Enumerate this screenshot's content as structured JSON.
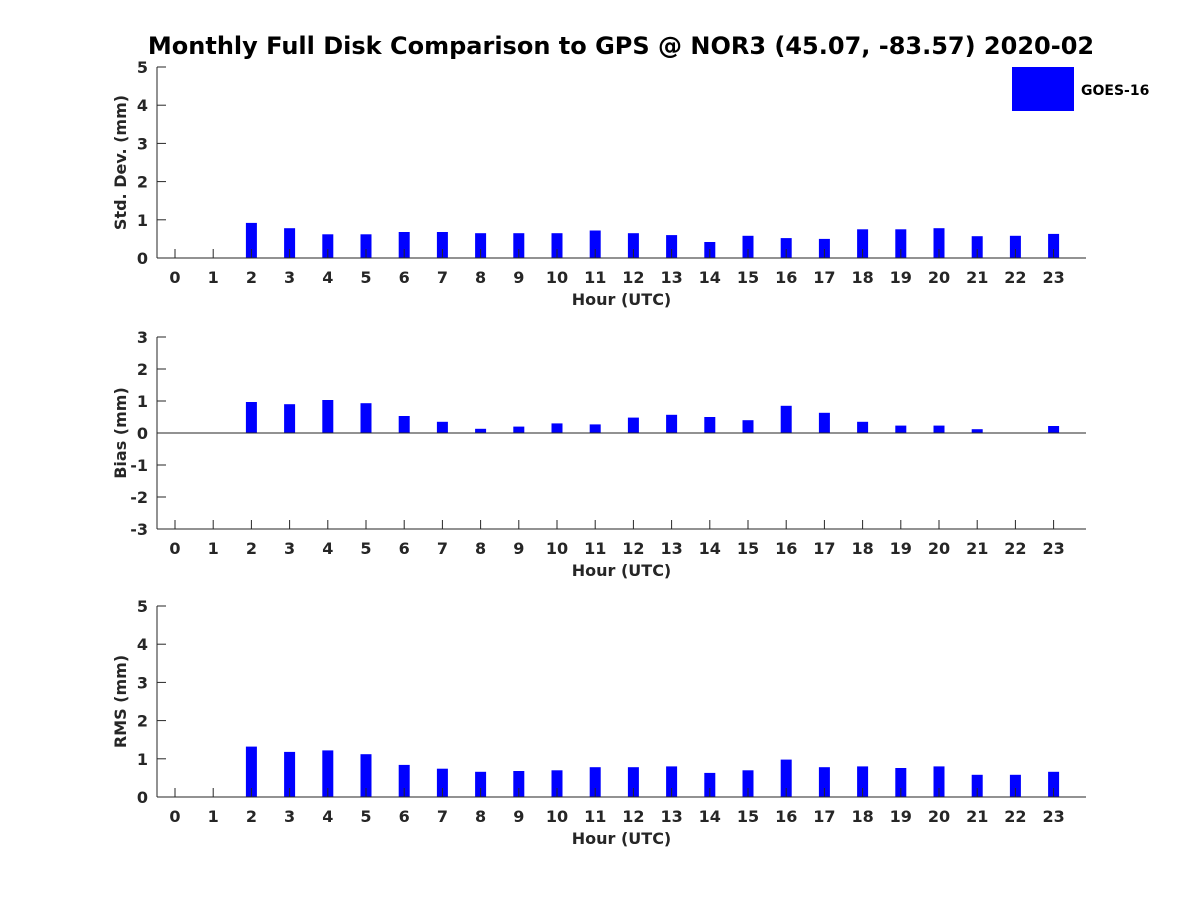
{
  "title": "Monthly Full Disk Comparison to GPS @ NOR3 (45.07, -83.57) 2020-02",
  "legend": {
    "label": "GOES-16",
    "color": "#0000ff",
    "placement": "top-right"
  },
  "colors": {
    "bar": "#0000ff",
    "axis": "#262626"
  },
  "chart_data": [
    {
      "type": "bar",
      "ylabel": "Std. Dev. (mm)",
      "xlabel": "Hour (UTC)",
      "ylim": [
        0,
        5
      ],
      "yticks": [
        0,
        1,
        2,
        3,
        4,
        5
      ],
      "grid": false,
      "categories": [
        "0",
        "1",
        "2",
        "3",
        "4",
        "5",
        "6",
        "7",
        "8",
        "9",
        "10",
        "11",
        "12",
        "13",
        "14",
        "15",
        "16",
        "17",
        "18",
        "19",
        "20",
        "21",
        "22",
        "23"
      ],
      "series": [
        {
          "name": "GOES-16",
          "values": [
            null,
            null,
            0.92,
            0.78,
            0.62,
            0.62,
            0.68,
            0.68,
            0.65,
            0.65,
            0.65,
            0.72,
            0.65,
            0.6,
            0.42,
            0.58,
            0.52,
            0.5,
            0.75,
            0.75,
            0.78,
            0.57,
            0.58,
            0.63
          ]
        }
      ]
    },
    {
      "type": "bar",
      "ylabel": "Bias (mm)",
      "xlabel": "Hour (UTC)",
      "ylim": [
        -3,
        3
      ],
      "yticks": [
        -3,
        -2,
        -1,
        0,
        1,
        2,
        3
      ],
      "grid": false,
      "categories": [
        "0",
        "1",
        "2",
        "3",
        "4",
        "5",
        "6",
        "7",
        "8",
        "9",
        "10",
        "11",
        "12",
        "13",
        "14",
        "15",
        "16",
        "17",
        "18",
        "19",
        "20",
        "21",
        "22",
        "23"
      ],
      "series": [
        {
          "name": "GOES-16",
          "values": [
            null,
            null,
            0.97,
            0.9,
            1.03,
            0.93,
            0.53,
            0.35,
            0.13,
            0.2,
            0.3,
            0.27,
            0.48,
            0.57,
            0.5,
            0.4,
            0.85,
            0.63,
            0.35,
            0.23,
            0.23,
            0.12,
            null,
            0.22
          ]
        }
      ]
    },
    {
      "type": "bar",
      "ylabel": "RMS (mm)",
      "xlabel": "Hour (UTC)",
      "ylim": [
        0,
        5
      ],
      "yticks": [
        0,
        1,
        2,
        3,
        4,
        5
      ],
      "grid": false,
      "categories": [
        "0",
        "1",
        "2",
        "3",
        "4",
        "5",
        "6",
        "7",
        "8",
        "9",
        "10",
        "11",
        "12",
        "13",
        "14",
        "15",
        "16",
        "17",
        "18",
        "19",
        "20",
        "21",
        "22",
        "23"
      ],
      "series": [
        {
          "name": "GOES-16",
          "values": [
            null,
            null,
            1.32,
            1.18,
            1.22,
            1.12,
            0.84,
            0.74,
            0.66,
            0.68,
            0.7,
            0.78,
            0.78,
            0.8,
            0.63,
            0.7,
            0.98,
            0.78,
            0.8,
            0.76,
            0.8,
            0.58,
            0.58,
            0.66
          ]
        }
      ]
    }
  ]
}
